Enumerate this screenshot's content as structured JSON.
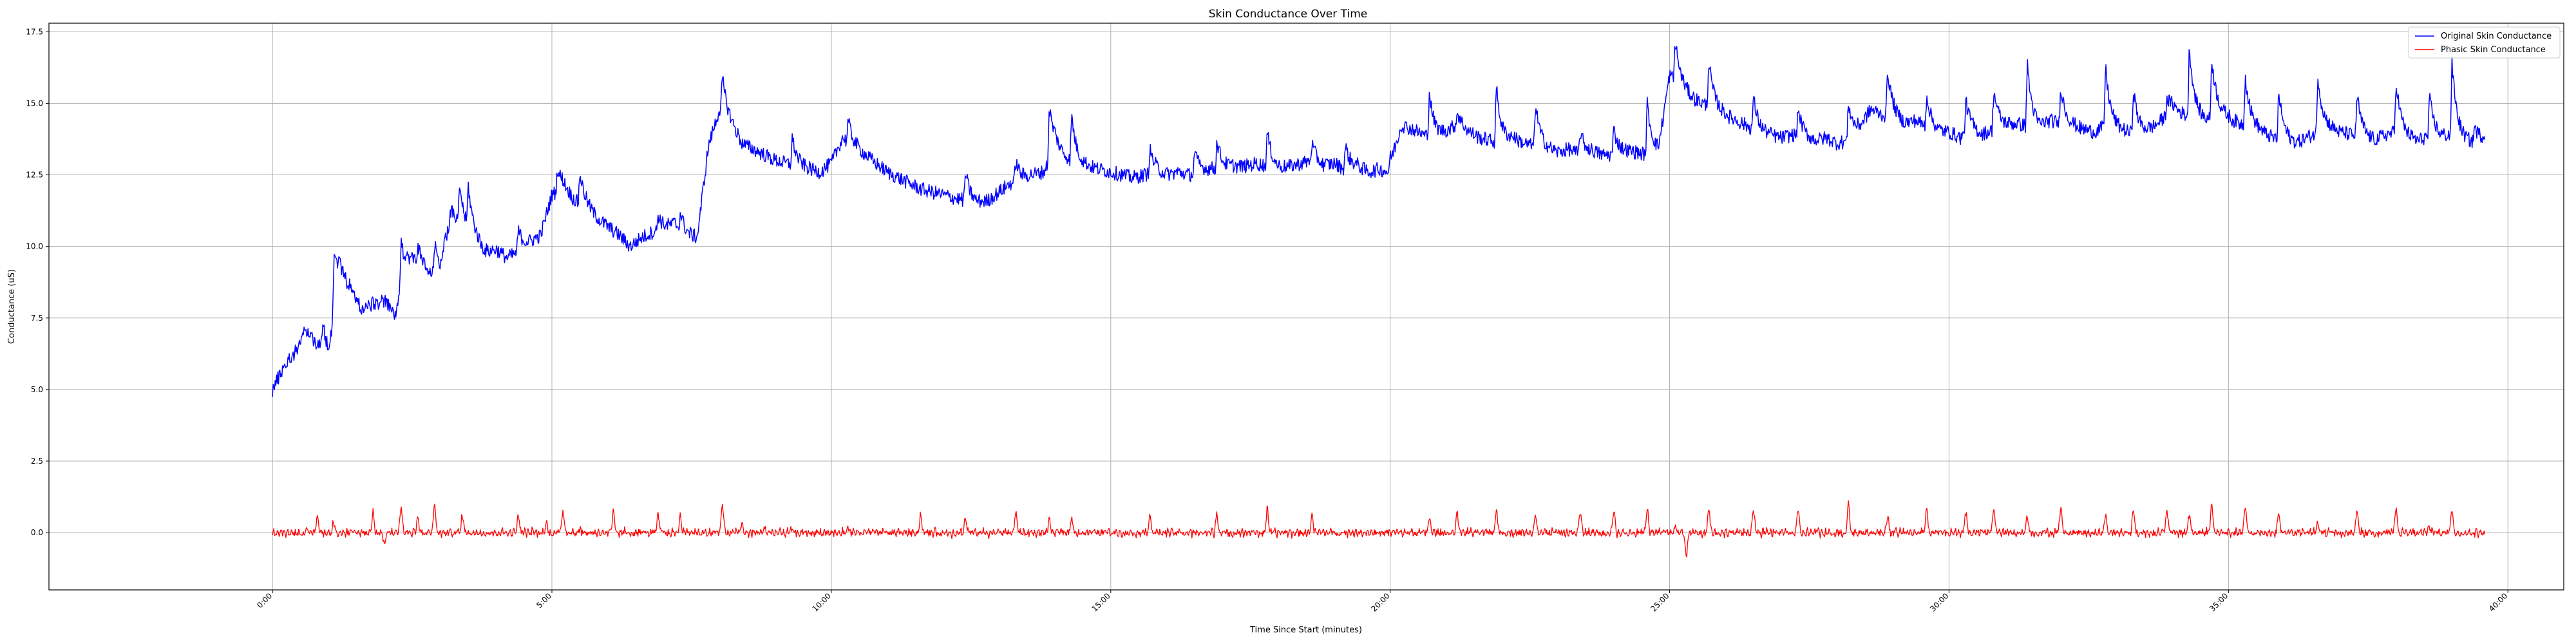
{
  "chart_data": {
    "type": "line",
    "title": "Skin Conductance  Over Time",
    "xlabel": "Time Since Start (minutes)",
    "ylabel": "Conductance (uS)",
    "xlim": [
      -4,
      41
    ],
    "ylim": [
      -2.0,
      17.8
    ],
    "x_ticks": [
      0,
      5,
      10,
      15,
      20,
      25,
      30,
      35,
      40
    ],
    "x_tick_labels": [
      "0:00",
      "5:00",
      "10:00",
      "15:00",
      "20:00",
      "25:00",
      "30:00",
      "35:00",
      "40:00"
    ],
    "y_ticks": [
      0.0,
      2.5,
      5.0,
      7.5,
      10.0,
      12.5,
      15.0,
      17.5
    ],
    "y_tick_labels": [
      "0.0",
      "2.5",
      "5.0",
      "7.5",
      "10.0",
      "12.5",
      "15.0",
      "17.5"
    ],
    "grid": true,
    "legend_position": "upper-right",
    "series": [
      {
        "name": "Original Skin Conductance",
        "color": "#0000ff",
        "x": [
          0,
          0.2,
          0.4,
          0.6,
          0.8,
          1.0,
          1.2,
          1.4,
          1.6,
          1.8,
          2.0,
          2.2,
          2.4,
          2.6,
          2.8,
          3.0,
          3.2,
          3.4,
          3.6,
          3.8,
          4.0,
          4.2,
          4.4,
          4.6,
          4.8,
          5.0,
          5.2,
          5.4,
          5.6,
          5.8,
          6.0,
          6.2,
          6.4,
          6.6,
          6.8,
          7.0,
          7.2,
          7.4,
          7.6,
          7.8,
          8.0,
          8.2,
          8.4,
          8.6,
          8.8,
          9.0,
          9.2,
          9.4,
          9.6,
          9.8,
          10.0,
          10.2,
          10.4,
          10.6,
          10.8,
          11.0,
          11.2,
          11.4,
          11.6,
          11.8,
          12.0,
          12.2,
          12.4,
          12.6,
          12.8,
          13.0,
          13.2,
          13.4,
          13.6,
          13.8,
          14.0,
          14.2,
          14.4,
          14.6,
          14.8,
          15.0,
          15.2,
          15.4,
          15.6,
          15.8,
          16.0,
          16.2,
          16.4,
          16.6,
          16.8,
          17.0,
          17.2,
          17.4,
          17.6,
          17.8,
          18.0,
          18.2,
          18.4,
          18.6,
          18.8,
          19.0,
          19.2,
          19.4,
          19.6,
          19.8,
          20.0,
          20.2,
          20.4,
          20.6,
          20.8,
          21.0,
          21.2,
          21.4,
          21.6,
          21.8,
          22.0,
          22.2,
          22.4,
          22.6,
          22.8,
          23.0,
          23.2,
          23.4,
          23.6,
          23.8,
          24.0,
          24.2,
          24.4,
          24.6,
          24.8,
          25.0,
          25.2,
          25.4,
          25.6,
          25.8,
          26.0,
          26.2,
          26.4,
          26.6,
          26.8,
          27.0,
          27.2,
          27.4,
          27.6,
          27.8,
          28.0,
          28.2,
          28.4,
          28.6,
          28.8,
          29.0,
          29.2,
          29.4,
          29.6,
          29.8,
          30.0,
          30.2,
          30.4,
          30.6,
          30.8,
          31.0,
          31.2,
          31.4,
          31.6,
          31.8,
          32.0,
          32.2,
          32.4,
          32.6,
          32.8,
          33.0,
          33.2,
          33.4,
          33.6,
          33.8,
          34.0,
          34.2,
          34.4,
          34.6,
          34.8,
          35.0,
          35.2,
          35.4,
          35.6,
          35.8,
          36.0,
          36.2,
          36.4,
          36.6,
          36.8,
          37.0,
          37.2,
          37.4,
          37.6,
          37.8,
          38.0,
          38.2,
          38.4,
          38.6,
          38.8,
          39.0,
          39.2,
          39.4,
          39.6
        ],
        "y": [
          5.0,
          5.8,
          6.3,
          7.1,
          6.6,
          6.2,
          8.8,
          8.5,
          7.8,
          8.0,
          8.1,
          7.6,
          9.2,
          9.6,
          9.0,
          9.1,
          11.2,
          10.6,
          10.3,
          9.8,
          9.9,
          9.6,
          9.8,
          10.1,
          10.4,
          11.8,
          12.1,
          11.6,
          11.4,
          11.0,
          10.7,
          10.4,
          10.0,
          10.3,
          10.5,
          10.6,
          10.8,
          10.4,
          10.3,
          13.5,
          14.8,
          14.3,
          13.6,
          13.4,
          13.2,
          13.0,
          12.9,
          12.8,
          12.7,
          12.6,
          12.9,
          13.8,
          13.5,
          13.2,
          12.9,
          12.6,
          12.4,
          12.2,
          12.0,
          11.9,
          11.8,
          11.7,
          11.6,
          11.5,
          11.6,
          11.9,
          12.2,
          12.3,
          12.5,
          12.6,
          13.4,
          13.1,
          12.9,
          12.8,
          12.7,
          12.6,
          12.5,
          12.4,
          12.5,
          12.6,
          12.5,
          12.6,
          12.5,
          12.6,
          12.7,
          12.7,
          12.8,
          12.8,
          12.9,
          12.8,
          12.7,
          12.8,
          12.9,
          13.0,
          12.8,
          12.9,
          12.7,
          12.8,
          12.6,
          12.7,
          12.6,
          14.2,
          14.1,
          13.9,
          13.8,
          14.0,
          14.3,
          14.0,
          13.8,
          13.7,
          13.6,
          13.8,
          13.6,
          13.5,
          13.4,
          13.3,
          13.4,
          13.2,
          13.3,
          13.2,
          13.2,
          13.3,
          13.3,
          13.2,
          13.3,
          16.0,
          15.6,
          15.2,
          15.0,
          14.8,
          14.6,
          14.4,
          14.2,
          14.0,
          13.9,
          13.8,
          13.9,
          13.8,
          13.7,
          13.8,
          13.6,
          13.7,
          14.1,
          14.8,
          14.6,
          14.5,
          14.3,
          14.4,
          14.2,
          14.0,
          14.0,
          13.8,
          14.0,
          13.9,
          14.1,
          14.2,
          14.3,
          14.2,
          14.1,
          14.4,
          14.3,
          14.2,
          14.1,
          14.0,
          14.2,
          14.1,
          14.0,
          13.9,
          14.1,
          14.4,
          14.8,
          14.6,
          14.5,
          14.4,
          14.6,
          14.5,
          14.3,
          14.2,
          14.0,
          13.8,
          13.7,
          13.6,
          13.8,
          14.0,
          14.1,
          14.0,
          13.9,
          13.8,
          13.7,
          13.9,
          14.0,
          13.8,
          13.7,
          13.9,
          13.8,
          13.9,
          13.7,
          13.6,
          13.8
        ],
        "peaks": [
          [
            0.5,
            6.4
          ],
          [
            0.9,
            7.3
          ],
          [
            1.1,
            9.8
          ],
          [
            2.3,
            10.1
          ],
          [
            2.6,
            10.0
          ],
          [
            2.9,
            10.1
          ],
          [
            3.35,
            12.2
          ],
          [
            3.5,
            12.2
          ],
          [
            4.4,
            10.6
          ],
          [
            5.1,
            12.7
          ],
          [
            5.5,
            12.6
          ],
          [
            6.9,
            11.1
          ],
          [
            7.3,
            11.2
          ],
          [
            8.05,
            15.9
          ],
          [
            9.3,
            13.8
          ],
          [
            10.3,
            14.4
          ],
          [
            12.4,
            12.6
          ],
          [
            13.3,
            13.0
          ],
          [
            13.9,
            14.9
          ],
          [
            14.3,
            14.6
          ],
          [
            15.7,
            13.4
          ],
          [
            16.5,
            13.3
          ],
          [
            16.9,
            13.7
          ],
          [
            17.8,
            14.0
          ],
          [
            18.6,
            13.6
          ],
          [
            19.2,
            13.5
          ],
          [
            20.0,
            13.1
          ],
          [
            20.7,
            15.4
          ],
          [
            21.2,
            14.7
          ],
          [
            21.9,
            15.6
          ],
          [
            22.6,
            15.0
          ],
          [
            23.4,
            14.0
          ],
          [
            24.0,
            14.1
          ],
          [
            24.6,
            15.0
          ],
          [
            25.1,
            17.2
          ],
          [
            25.7,
            16.5
          ],
          [
            26.5,
            15.2
          ],
          [
            27.3,
            14.8
          ],
          [
            28.2,
            15.0
          ],
          [
            28.9,
            16.2
          ],
          [
            29.6,
            15.3
          ],
          [
            30.3,
            15.1
          ],
          [
            30.8,
            15.5
          ],
          [
            31.4,
            16.4
          ],
          [
            32.0,
            15.6
          ],
          [
            32.8,
            16.3
          ],
          [
            33.3,
            15.5
          ],
          [
            33.9,
            15.2
          ],
          [
            34.3,
            17.0
          ],
          [
            34.7,
            16.6
          ],
          [
            35.3,
            16.0
          ],
          [
            35.9,
            15.4
          ],
          [
            36.6,
            16.0
          ],
          [
            37.3,
            15.3
          ],
          [
            38.0,
            15.8
          ],
          [
            38.6,
            15.2
          ],
          [
            39.0,
            16.4
          ],
          [
            39.4,
            14.2
          ]
        ]
      },
      {
        "name": "Phasic Skin Conductance",
        "color": "#ff0000",
        "x_range": [
          0,
          39.6
        ],
        "baseline": 0.0,
        "peaks": [
          [
            0.8,
            0.6
          ],
          [
            1.1,
            0.8
          ],
          [
            1.8,
            0.7
          ],
          [
            2.3,
            0.9
          ],
          [
            2.6,
            1.0
          ],
          [
            2.9,
            1.0
          ],
          [
            3.4,
            1.1
          ],
          [
            4.4,
            0.6
          ],
          [
            4.9,
            0.9
          ],
          [
            5.2,
            0.8
          ],
          [
            5.5,
            0.8
          ],
          [
            6.1,
            0.7
          ],
          [
            6.9,
            0.6
          ],
          [
            7.3,
            0.6
          ],
          [
            8.05,
            1.0
          ],
          [
            8.4,
            0.9
          ],
          [
            8.8,
            0.8
          ],
          [
            9.3,
            0.7
          ],
          [
            10.3,
            0.8
          ],
          [
            11.6,
            0.6
          ],
          [
            12.4,
            0.5
          ],
          [
            13.3,
            0.7
          ],
          [
            13.9,
            0.9
          ],
          [
            14.3,
            1.0
          ],
          [
            15.7,
            0.6
          ],
          [
            16.9,
            0.7
          ],
          [
            17.8,
            0.8
          ],
          [
            18.6,
            0.6
          ],
          [
            20.7,
            0.9
          ],
          [
            21.2,
            0.7
          ],
          [
            21.9,
            0.8
          ],
          [
            22.6,
            0.7
          ],
          [
            23.4,
            0.7
          ],
          [
            24.0,
            0.8
          ],
          [
            24.6,
            1.5
          ],
          [
            25.1,
            1.4
          ],
          [
            25.7,
            0.9
          ],
          [
            26.5,
            0.9
          ],
          [
            27.3,
            0.8
          ],
          [
            28.2,
            1.0
          ],
          [
            28.9,
            1.2
          ],
          [
            29.6,
            0.9
          ],
          [
            30.3,
            0.7
          ],
          [
            30.8,
            0.9
          ],
          [
            31.4,
            1.2
          ],
          [
            32.0,
            0.9
          ],
          [
            32.8,
            1.1
          ],
          [
            33.3,
            0.8
          ],
          [
            33.9,
            0.8
          ],
          [
            34.3,
            1.2
          ],
          [
            34.7,
            1.0
          ],
          [
            35.3,
            0.9
          ],
          [
            35.9,
            0.7
          ],
          [
            36.6,
            1.3
          ],
          [
            37.3,
            0.8
          ],
          [
            38.0,
            0.9
          ],
          [
            38.6,
            0.6
          ],
          [
            39.0,
            1.4
          ]
        ],
        "troughs": [
          [
            1.1,
            -0.4
          ],
          [
            2.0,
            -0.4
          ],
          [
            2.6,
            -0.5
          ],
          [
            3.4,
            -0.5
          ],
          [
            4.9,
            -0.6
          ],
          [
            5.5,
            -0.7
          ],
          [
            8.4,
            -0.6
          ],
          [
            8.8,
            -0.6
          ],
          [
            9.3,
            -0.6
          ],
          [
            10.3,
            -0.6
          ],
          [
            13.9,
            -0.5
          ],
          [
            14.3,
            -0.5
          ],
          [
            20.7,
            -0.4
          ],
          [
            24.6,
            -0.6
          ],
          [
            25.1,
            -1.2
          ],
          [
            25.3,
            -0.8
          ],
          [
            28.9,
            -0.6
          ],
          [
            31.4,
            -0.6
          ],
          [
            32.8,
            -0.5
          ],
          [
            34.3,
            -0.6
          ],
          [
            36.6,
            -1.0
          ],
          [
            38.6,
            -0.4
          ],
          [
            39.0,
            -0.6
          ]
        ]
      }
    ]
  }
}
